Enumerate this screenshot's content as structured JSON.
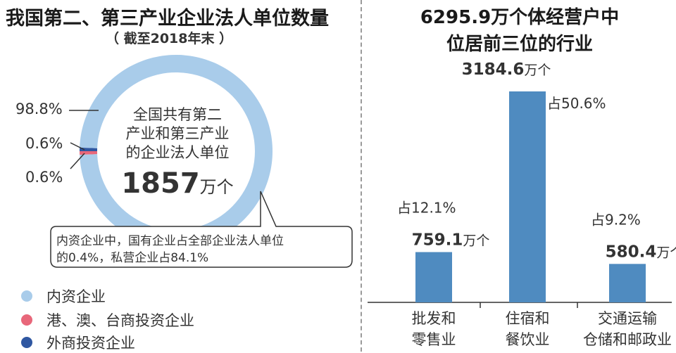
{
  "chart_data": [
    {
      "type": "pie",
      "title": "我国第二、第三产业企业法人单位数量",
      "subtitle": "（ 截至2018年末 ）",
      "center_lines": [
        "全国共有第二",
        "产业和第三产业",
        "的企业法人单位"
      ],
      "center_value": "1857",
      "center_unit": "万个",
      "labels": [
        "内资企业",
        "港、澳、台商投资企业",
        "外商投资企业"
      ],
      "values": [
        98.8,
        0.6,
        0.6
      ],
      "value_labels": [
        "98.8%",
        "0.6%",
        "0.6%"
      ],
      "colors": [
        "#a9ccea",
        "#e8677a",
        "#2f57a1"
      ],
      "legend_position": "bottom-left",
      "note_lines": [
        "内资企业中，国有企业占全部企业法人单位",
        "的0.4%，私营企业占84.1%"
      ]
    },
    {
      "type": "bar",
      "title": "6295.9万个体经营户中",
      "subtitle": "位居前三位的行业",
      "categories": [
        [
          "批发和",
          "零售业"
        ],
        [
          "住宿和",
          "餐饮业"
        ],
        [
          "交通运输",
          "仓储和邮政业"
        ]
      ],
      "values": [
        759.1,
        3184.6,
        580.4
      ],
      "value_labels": [
        "759.1",
        "3184.6",
        "580.4"
      ],
      "unit": "万个",
      "share_labels": [
        "占12.1%",
        "占50.6%",
        "占9.2%"
      ],
      "bar_color": "#4f8bc0",
      "ylim": [
        0,
        3184.6
      ]
    }
  ]
}
